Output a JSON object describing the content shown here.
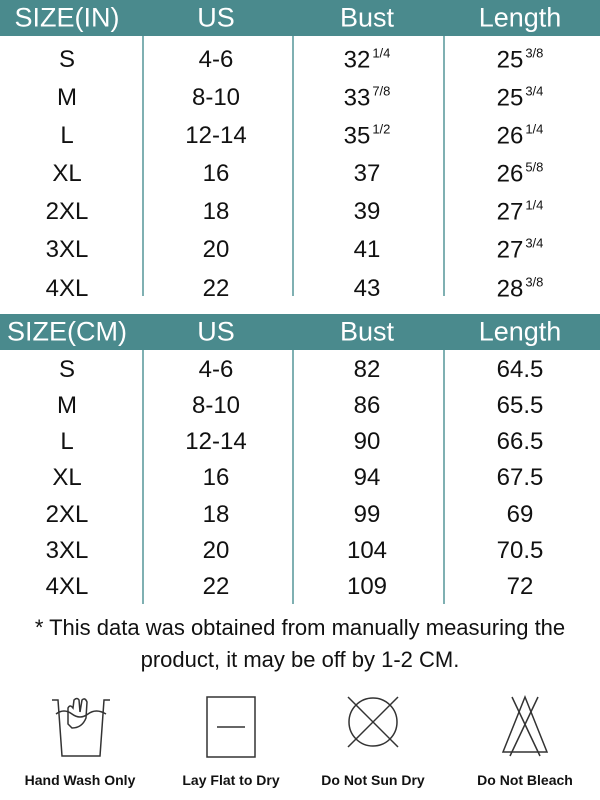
{
  "inch_table": {
    "header": [
      "SIZE(IN)",
      "US",
      "Bust",
      "Length"
    ],
    "rows": [
      [
        "S",
        "4-6",
        {
          "whole": "32",
          "frac": "1/4"
        },
        {
          "whole": "25",
          "frac": "3/8"
        }
      ],
      [
        "M",
        "8-10",
        {
          "whole": "33",
          "frac": "7/8"
        },
        {
          "whole": "25",
          "frac": "3/4"
        }
      ],
      [
        "L",
        "12-14",
        {
          "whole": "35",
          "frac": "1/2"
        },
        {
          "whole": "26",
          "frac": "1/4"
        }
      ],
      [
        "XL",
        "16",
        "37",
        {
          "whole": "26",
          "frac": "5/8"
        }
      ],
      [
        "2XL",
        "18",
        "39",
        {
          "whole": "27",
          "frac": "1/4"
        }
      ],
      [
        "3XL",
        "20",
        "41",
        {
          "whole": "27",
          "frac": "3/4"
        }
      ],
      [
        "4XL",
        "22",
        "43",
        {
          "whole": "28",
          "frac": "3/8"
        }
      ]
    ]
  },
  "cm_table": {
    "header": [
      "SIZE(CM)",
      "US",
      "Bust",
      "Length"
    ],
    "rows": [
      [
        "S",
        "4-6",
        "82",
        "64.5"
      ],
      [
        "M",
        "8-10",
        "86",
        "65.5"
      ],
      [
        "L",
        "12-14",
        "90",
        "66.5"
      ],
      [
        "XL",
        "16",
        "94",
        "67.5"
      ],
      [
        "2XL",
        "18",
        "99",
        "69"
      ],
      [
        "3XL",
        "20",
        "104",
        "70.5"
      ],
      [
        "4XL",
        "22",
        "109",
        "72"
      ]
    ]
  },
  "note": "* This data was obtained from manually measuring the product, it may be off by 1-2 CM.",
  "care": [
    "Hand Wash Only",
    "Lay Flat to Dry",
    "Do Not Sun Dry",
    "Do Not Bleach"
  ]
}
